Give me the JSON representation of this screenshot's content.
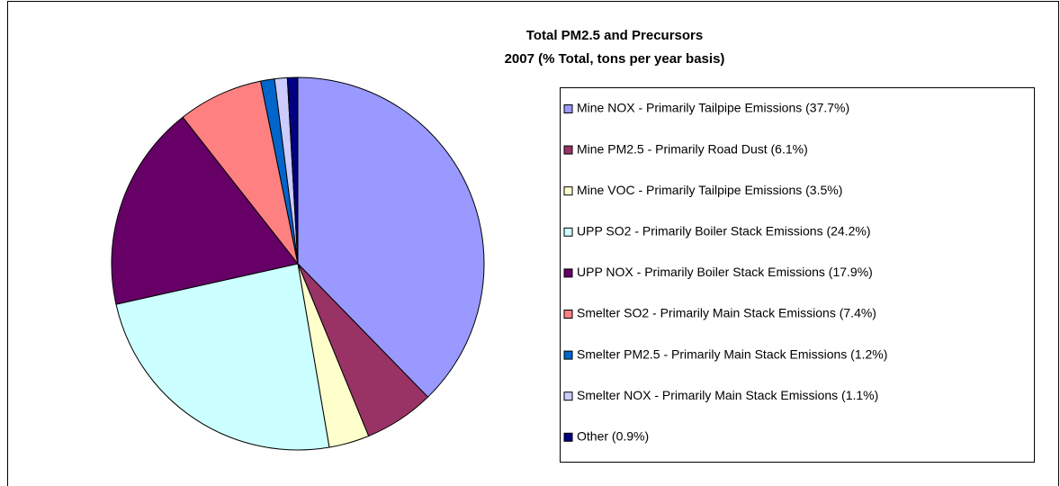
{
  "chart_data": {
    "type": "pie",
    "title": "Total PM2.5 and Precursors",
    "subtitle": "2007 (% Total, tons per year basis)",
    "categories": [
      "Mine NOX - Primarily Tailpipe Emissions (37.7%)",
      "Mine PM2.5 - Primarily Road Dust (6.1%)",
      "Mine VOC - Primarily Tailpipe Emissions (3.5%)",
      "UPP SO2 - Primarily Boiler Stack Emissions (24.2%)",
      "UPP NOX - Primarily Boiler Stack Emissions (17.9%)",
      "Smelter SO2 - Primarily Main Stack Emissions (7.4%)",
      "Smelter PM2.5 - Primarily Main Stack Emissions (1.2%)",
      "Smelter NOX - Primarily Main Stack Emissions (1.1%)",
      "Other (0.9%)"
    ],
    "values": [
      37.7,
      6.1,
      3.5,
      24.2,
      17.9,
      7.4,
      1.2,
      1.1,
      0.9
    ],
    "colors": [
      "#9999ff",
      "#993366",
      "#ffffcc",
      "#ccffff",
      "#660066",
      "#ff8080",
      "#0066cc",
      "#ccccff",
      "#000080"
    ],
    "legend": "right"
  }
}
